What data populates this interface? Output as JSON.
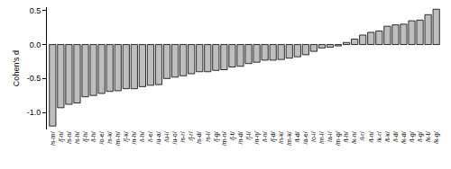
{
  "chart_data": {
    "type": "bar",
    "y_label": "Cohen's d",
    "categories": [
      "/s-m/",
      "/ʃ-n/",
      "/s-n/",
      "/s-h/",
      "/ʃ-h/",
      "/l-h/",
      "/o-e/",
      "/s-k/",
      "/m-h/",
      "/ʃ-k/",
      "/n-h/",
      "/i-h/",
      "/i-e/",
      "/u-a/",
      "/u-i/",
      "/u-o/",
      "/s-r/",
      "/ʃ-r/",
      "/s-d/",
      "/s-l/",
      "/ʃ-g/",
      "/m-n/",
      "/ʃ-t/",
      "/n-d/",
      "/ʃ-l/",
      "/n-ŋ/",
      "/l-n/",
      "/ʃ-d/",
      "/n-k/",
      "/m-k/",
      "/t-d/",
      "/a-e/",
      "/o-i/",
      "/m-l/",
      "/a-i/",
      "/m-g/",
      "/t-h/",
      "/k-n/",
      "/l-r/",
      "/t-n/",
      "/k-r/",
      "/t-k/",
      "/l-d/",
      "/k-d/",
      "/t-g/",
      "/l-g/",
      "/k-t/",
      "/k-g/"
    ],
    "values": [
      -1.2,
      -0.93,
      -0.88,
      -0.86,
      -0.77,
      -0.75,
      -0.72,
      -0.69,
      -0.68,
      -0.65,
      -0.65,
      -0.62,
      -0.6,
      -0.59,
      -0.5,
      -0.48,
      -0.46,
      -0.43,
      -0.4,
      -0.4,
      -0.38,
      -0.37,
      -0.33,
      -0.32,
      -0.28,
      -0.26,
      -0.23,
      -0.23,
      -0.22,
      -0.2,
      -0.18,
      -0.15,
      -0.1,
      -0.05,
      -0.04,
      -0.02,
      0.03,
      0.08,
      0.14,
      0.18,
      0.2,
      0.27,
      0.29,
      0.3,
      0.35,
      0.36,
      0.44,
      0.52
    ],
    "color": "#bebebe",
    "ylim": [
      -1.25,
      0.55
    ],
    "yticks": [
      {
        "value": -1.0,
        "label": "-1.0"
      },
      {
        "value": -0.5,
        "label": "-0.5"
      },
      {
        "value": 0,
        "label": "0.0"
      },
      {
        "value": 0.5,
        "label": "0.5"
      }
    ],
    "grid": false
  }
}
